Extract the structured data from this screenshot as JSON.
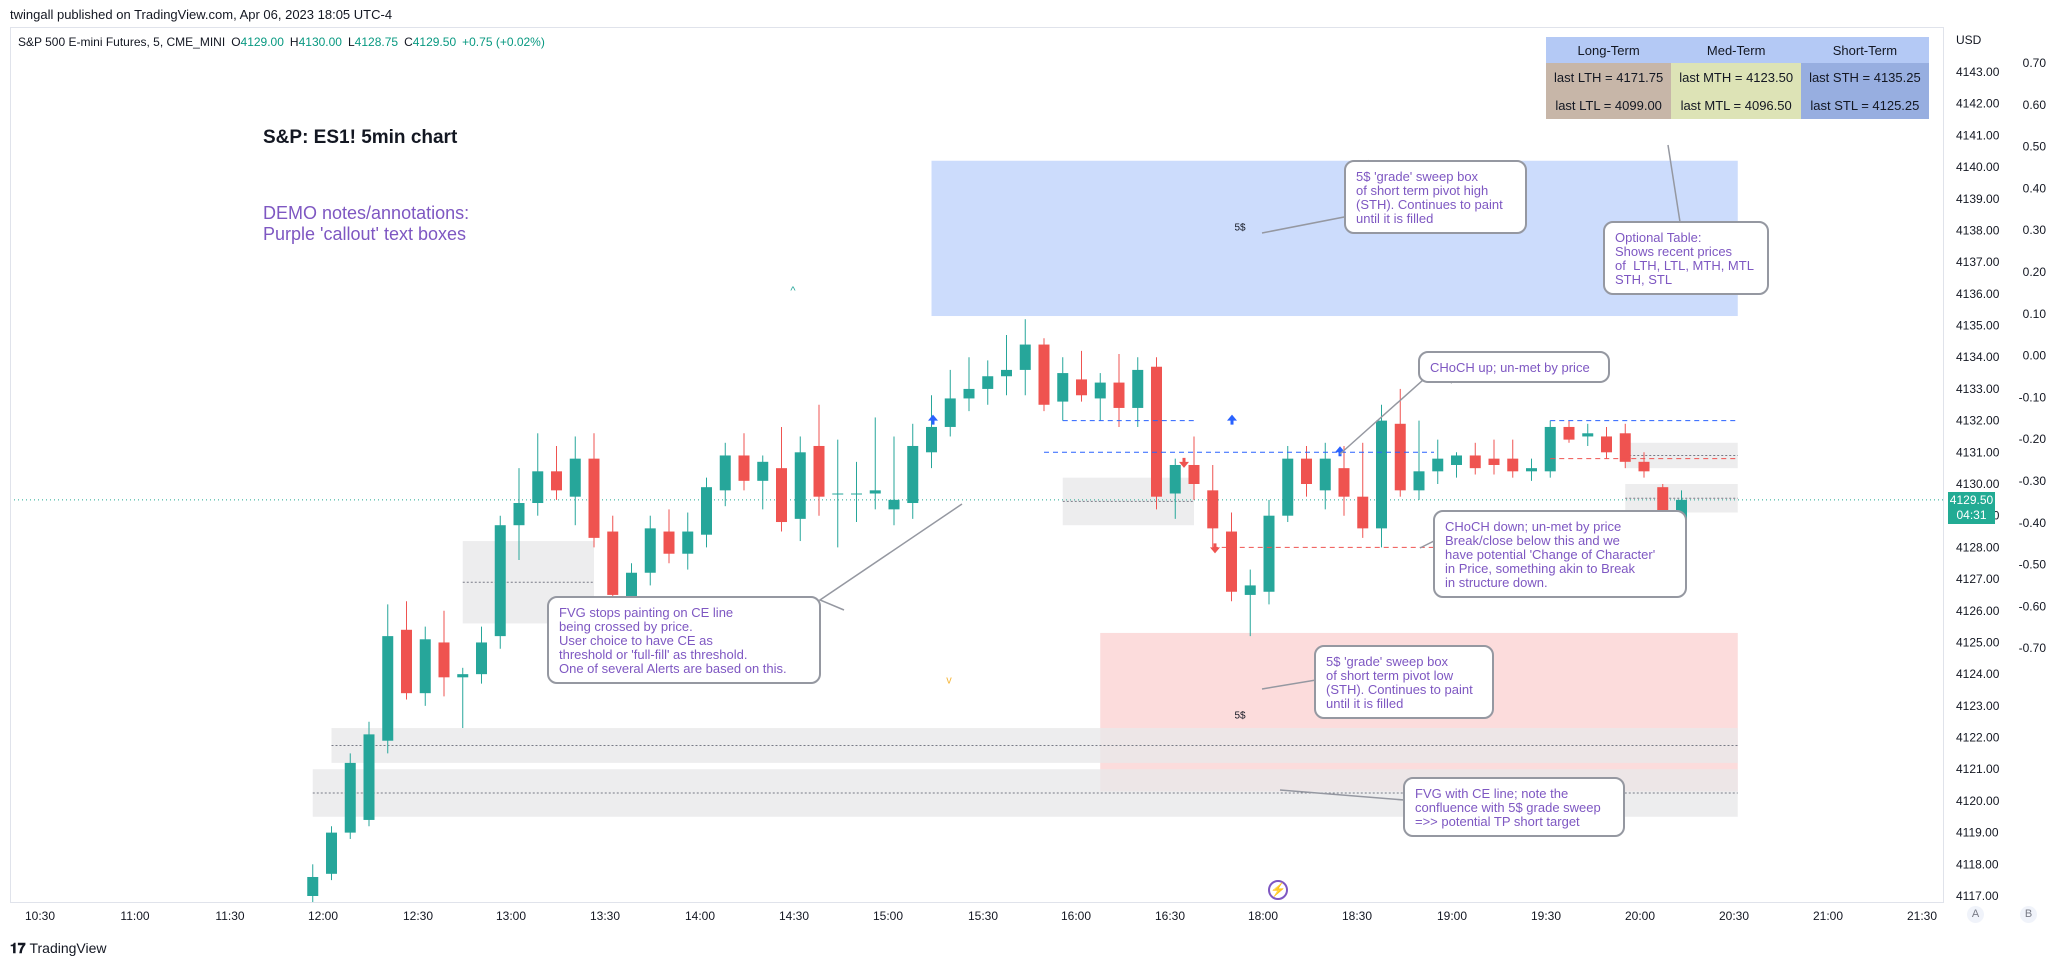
{
  "publisher": "twingall published on TradingView.com, Apr 06, 2023 18:05 UTC-4",
  "symbol": {
    "name": "S&P 500 E-mini Futures, 5, CME_MINI",
    "open_label": "O",
    "open": "4129.00",
    "high_label": "H",
    "high": "4130.00",
    "low_label": "L",
    "low": "4128.75",
    "close_label": "C",
    "close": "4129.50",
    "change": "+0.75 (+0.02%)"
  },
  "title": "S&P: ES1! 5min chart",
  "demo_note": "DEMO notes/annotations:\nPurple 'callout' text boxes",
  "currency": "USD",
  "last_price": "4129.50",
  "countdown": "04:31",
  "brand": "TradingView",
  "scale_buttons": [
    "A",
    "B"
  ],
  "table": {
    "headers": [
      "Long-Term",
      "Med-Term",
      "Short-Term"
    ],
    "rows": [
      [
        "last LTH = 4171.75",
        "last MTH = 4123.50",
        "last STH = 4135.25"
      ],
      [
        "last LTL = 4099.00",
        "last MTL = 4096.50",
        "last STL = 4125.25"
      ]
    ]
  },
  "callouts": {
    "sth_box": "5$ 'grade' sweep box\nof short term pivot high\n(STH). Continues to paint\nuntil it is filled",
    "table_note": "Optional Table:\nShows recent prices\nof  LTH, LTL, MTH, MTL\nSTH, STL",
    "choch_up": "CHoCH up; un-met by price",
    "choch_down": "CHoCH down; un-met by price\nBreak/close below this and we\nhave potential 'Change of Character'\nin Price, something akin to Break\nin structure down.",
    "fvg_ce": "FVG stops painting on CE line\nbeing crossed by price.\nUser choice to have CE as\nthreshold or 'full-fill' as threshold.\nOne of several Alerts are based on this.",
    "stl_box": "5$ 'grade' sweep box\nof short term pivot low\n(STH). Continues to paint\nuntil it is filled",
    "fvg_confluence": "FVG with CE line; note the\nconfluence with 5$ grade sweep\n=>> potential TP short target"
  },
  "box_labels": {
    "upper": "5$",
    "lower": "5$"
  },
  "colors": {
    "up": "#26a69a",
    "down": "#ef5350",
    "accent": "#7e57c2",
    "sweep_high": "#bbd0fb",
    "sweep_low": "#fbd6d6",
    "fvg": "#e8e8ea",
    "choch_up": "#2962ff",
    "choch_down": "#ef5350"
  },
  "chart_data": {
    "type": "candlestick",
    "interval": "5min",
    "y_axis": {
      "min": 4117.0,
      "max": 4143.0,
      "ticks": [
        "4117.00",
        "4118.00",
        "4119.00",
        "4120.00",
        "4121.00",
        "4122.00",
        "4123.00",
        "4124.00",
        "4125.00",
        "4126.00",
        "4127.00",
        "4128.00",
        "4129.00",
        "4130.00",
        "4131.00",
        "4132.00",
        "4133.00",
        "4134.00",
        "4135.00",
        "4136.00",
        "4137.00",
        "4138.00",
        "4139.00",
        "4140.00",
        "4141.00",
        "4142.00",
        "4143.00"
      ]
    },
    "secondary_axis_ticks": [
      "0.70",
      "0.60",
      "0.50",
      "0.40",
      "0.30",
      "0.20",
      "0.10",
      "0.00",
      "-0.10",
      "-0.20",
      "-0.30",
      "-0.40",
      "-0.50",
      "-0.60",
      "-0.70"
    ],
    "x_axis_ticks": [
      "10:30",
      "11:00",
      "11:30",
      "12:00",
      "12:30",
      "13:00",
      "13:30",
      "14:00",
      "14:30",
      "15:00",
      "15:30",
      "16:00",
      "16:30",
      "18:00",
      "18:30",
      "19:00",
      "19:30",
      "20:00",
      "20:30",
      "21:00",
      "21:30"
    ],
    "candles": [
      {
        "t": "11:45",
        "o": 4117.0,
        "h": 4118.0,
        "l": 4116.8,
        "c": 4117.6
      },
      {
        "t": "11:50",
        "o": 4117.7,
        "h": 4119.2,
        "l": 4117.5,
        "c": 4119.0
      },
      {
        "t": "11:55",
        "o": 4119.0,
        "h": 4121.5,
        "l": 4118.8,
        "c": 4121.2
      },
      {
        "t": "12:00",
        "o": 4119.4,
        "h": 4122.5,
        "l": 4119.2,
        "c": 4122.1
      },
      {
        "t": "12:05",
        "o": 4121.9,
        "h": 4126.2,
        "l": 4121.5,
        "c": 4125.2
      },
      {
        "t": "12:10",
        "o": 4125.4,
        "h": 4126.3,
        "l": 4123.2,
        "c": 4123.4
      },
      {
        "t": "12:15",
        "o": 4123.4,
        "h": 4125.5,
        "l": 4123.0,
        "c": 4125.1
      },
      {
        "t": "12:20",
        "o": 4125.0,
        "h": 4126.0,
        "l": 4123.3,
        "c": 4123.9
      },
      {
        "t": "12:25",
        "o": 4123.9,
        "h": 4124.2,
        "l": 4122.3,
        "c": 4124.0
      },
      {
        "t": "12:30",
        "o": 4124.0,
        "h": 4125.5,
        "l": 4123.7,
        "c": 4125.0
      },
      {
        "t": "12:35",
        "o": 4125.2,
        "h": 4129.0,
        "l": 4124.8,
        "c": 4128.7
      },
      {
        "t": "12:40",
        "o": 4128.7,
        "h": 4130.5,
        "l": 4127.6,
        "c": 4129.4
      },
      {
        "t": "12:45",
        "o": 4129.4,
        "h": 4131.6,
        "l": 4129.0,
        "c": 4130.4
      },
      {
        "t": "12:50",
        "o": 4130.4,
        "h": 4131.2,
        "l": 4129.5,
        "c": 4129.8
      },
      {
        "t": "12:55",
        "o": 4129.6,
        "h": 4131.5,
        "l": 4128.7,
        "c": 4130.8
      },
      {
        "t": "13:00",
        "o": 4130.8,
        "h": 4131.6,
        "l": 4128.0,
        "c": 4128.3
      },
      {
        "t": "13:05",
        "o": 4128.5,
        "h": 4129.0,
        "l": 4126.2,
        "c": 4126.5
      },
      {
        "t": "13:10",
        "o": 4126.3,
        "h": 4127.5,
        "l": 4125.2,
        "c": 4127.2
      },
      {
        "t": "13:15",
        "o": 4127.2,
        "h": 4129.0,
        "l": 4126.8,
        "c": 4128.6
      },
      {
        "t": "13:20",
        "o": 4128.5,
        "h": 4129.2,
        "l": 4127.5,
        "c": 4127.8
      },
      {
        "t": "13:25",
        "o": 4127.8,
        "h": 4129.1,
        "l": 4127.3,
        "c": 4128.5
      },
      {
        "t": "13:30",
        "o": 4128.4,
        "h": 4130.2,
        "l": 4128.0,
        "c": 4129.9
      },
      {
        "t": "13:35",
        "o": 4129.8,
        "h": 4131.3,
        "l": 4129.3,
        "c": 4130.9
      },
      {
        "t": "13:40",
        "o": 4130.9,
        "h": 4131.6,
        "l": 4129.8,
        "c": 4130.1
      },
      {
        "t": "13:45",
        "o": 4130.1,
        "h": 4130.9,
        "l": 4129.2,
        "c": 4130.7
      },
      {
        "t": "13:50",
        "o": 4130.5,
        "h": 4131.8,
        "l": 4128.5,
        "c": 4128.8
      },
      {
        "t": "13:55",
        "o": 4128.9,
        "h": 4131.5,
        "l": 4128.2,
        "c": 4131.0
      },
      {
        "t": "14:00",
        "o": 4131.2,
        "h": 4132.5,
        "l": 4129.0,
        "c": 4129.6
      },
      {
        "t": "14:05",
        "o": 4129.7,
        "h": 4131.4,
        "l": 4128.0,
        "c": 4129.7
      },
      {
        "t": "14:10",
        "o": 4129.7,
        "h": 4130.7,
        "l": 4128.8,
        "c": 4129.7
      },
      {
        "t": "14:15",
        "o": 4129.7,
        "h": 4132.1,
        "l": 4129.2,
        "c": 4129.8
      },
      {
        "t": "14:20",
        "o": 4129.2,
        "h": 4131.5,
        "l": 4128.7,
        "c": 4129.5
      },
      {
        "t": "14:25",
        "o": 4129.4,
        "h": 4131.9,
        "l": 4128.9,
        "c": 4131.2
      },
      {
        "t": "14:30",
        "o": 4131.0,
        "h": 4132.8,
        "l": 4130.5,
        "c": 4131.8
      },
      {
        "t": "14:35",
        "o": 4131.8,
        "h": 4133.6,
        "l": 4131.5,
        "c": 4132.7
      },
      {
        "t": "14:40",
        "o": 4132.7,
        "h": 4134.0,
        "l": 4132.3,
        "c": 4133.0
      },
      {
        "t": "14:45",
        "o": 4133.0,
        "h": 4133.9,
        "l": 4132.5,
        "c": 4133.4
      },
      {
        "t": "14:50",
        "o": 4133.4,
        "h": 4134.7,
        "l": 4132.8,
        "c": 4133.6
      },
      {
        "t": "14:55",
        "o": 4133.6,
        "h": 4135.2,
        "l": 4132.8,
        "c": 4134.4
      },
      {
        "t": "15:00",
        "o": 4134.4,
        "h": 4134.6,
        "l": 4132.3,
        "c": 4132.5
      },
      {
        "t": "15:05",
        "o": 4132.6,
        "h": 4134.0,
        "l": 4132.0,
        "c": 4133.5
      },
      {
        "t": "15:10",
        "o": 4133.3,
        "h": 4134.2,
        "l": 4132.6,
        "c": 4132.8
      },
      {
        "t": "15:15",
        "o": 4132.7,
        "h": 4133.5,
        "l": 4132.0,
        "c": 4133.2
      },
      {
        "t": "15:20",
        "o": 4133.2,
        "h": 4134.1,
        "l": 4131.8,
        "c": 4132.4
      },
      {
        "t": "15:25",
        "o": 4132.4,
        "h": 4134.0,
        "l": 4131.8,
        "c": 4133.6
      },
      {
        "t": "15:30",
        "o": 4133.7,
        "h": 4134.0,
        "l": 4129.2,
        "c": 4129.6
      },
      {
        "t": "15:35",
        "o": 4129.7,
        "h": 4130.8,
        "l": 4128.9,
        "c": 4130.6
      },
      {
        "t": "15:40",
        "o": 4130.6,
        "h": 4131.5,
        "l": 4129.5,
        "c": 4130.0
      },
      {
        "t": "15:45",
        "o": 4129.8,
        "h": 4130.6,
        "l": 4128.0,
        "c": 4128.6
      },
      {
        "t": "15:50",
        "o": 4128.5,
        "h": 4129.1,
        "l": 4126.3,
        "c": 4126.6
      },
      {
        "t": "15:55",
        "o": 4126.5,
        "h": 4127.3,
        "l": 4125.2,
        "c": 4126.8
      },
      {
        "t": "16:00",
        "o": 4126.6,
        "h": 4129.5,
        "l": 4126.2,
        "c": 4129.0
      },
      {
        "t": "16:05",
        "o": 4129.0,
        "h": 4131.2,
        "l": 4128.8,
        "c": 4130.8
      },
      {
        "t": "16:10",
        "o": 4130.8,
        "h": 4131.2,
        "l": 4129.6,
        "c": 4130.0
      },
      {
        "t": "16:15",
        "o": 4129.8,
        "h": 4131.3,
        "l": 4129.2,
        "c": 4130.8
      },
      {
        "t": "16:20",
        "o": 4130.5,
        "h": 4131.2,
        "l": 4129.0,
        "c": 4129.6
      },
      {
        "t": "16:25",
        "o": 4129.6,
        "h": 4131.3,
        "l": 4128.3,
        "c": 4128.6
      },
      {
        "t": "16:30",
        "o": 4128.6,
        "h": 4132.5,
        "l": 4128.0,
        "c": 4132.0
      },
      {
        "t": "16:35",
        "o": 4131.9,
        "h": 4133.0,
        "l": 4129.6,
        "c": 4129.8
      },
      {
        "t": "16:40",
        "o": 4129.8,
        "h": 4132.0,
        "l": 4129.5,
        "c": 4130.4
      },
      {
        "t": "16:45",
        "o": 4130.4,
        "h": 4131.4,
        "l": 4130.0,
        "c": 4130.8
      },
      {
        "t": "16:50",
        "o": 4130.6,
        "h": 4131.0,
        "l": 4130.2,
        "c": 4130.9
      },
      {
        "t": "16:55",
        "o": 4130.9,
        "h": 4131.3,
        "l": 4130.3,
        "c": 4130.5
      },
      {
        "t": "17:00",
        "o": 4130.8,
        "h": 4131.4,
        "l": 4130.3,
        "c": 4130.6
      },
      {
        "t": "17:05",
        "o": 4130.8,
        "h": 4131.4,
        "l": 4130.2,
        "c": 4130.4
      },
      {
        "t": "17:10",
        "o": 4130.4,
        "h": 4130.8,
        "l": 4130.1,
        "c": 4130.5
      },
      {
        "t": "17:15",
        "o": 4130.4,
        "h": 4132.0,
        "l": 4130.2,
        "c": 4131.8
      },
      {
        "t": "17:20",
        "o": 4131.8,
        "h": 4132.0,
        "l": 4131.3,
        "c": 4131.4
      },
      {
        "t": "17:25",
        "o": 4131.5,
        "h": 4131.9,
        "l": 4131.2,
        "c": 4131.6
      },
      {
        "t": "17:30",
        "o": 4131.5,
        "h": 4131.8,
        "l": 4130.8,
        "c": 4131.0
      },
      {
        "t": "17:35",
        "o": 4131.6,
        "h": 4131.9,
        "l": 4130.5,
        "c": 4130.7
      },
      {
        "t": "17:40",
        "o": 4130.7,
        "h": 4131.0,
        "l": 4130.2,
        "c": 4130.4
      },
      {
        "t": "17:45",
        "o": 4129.9,
        "h": 4130.0,
        "l": 4128.2,
        "c": 4128.9
      },
      {
        "t": "17:50",
        "o": 4128.8,
        "h": 4129.8,
        "l": 4128.6,
        "c": 4129.5
      }
    ],
    "zones": {
      "sweep_high_box": {
        "from": "14:30",
        "to": "18:05",
        "top": 4140.2,
        "bottom": 4135.3
      },
      "sweep_low_box": {
        "from": "15:15",
        "to": "18:05",
        "top": 4125.3,
        "bottom": 4120.3
      },
      "fvg_zones": [
        {
          "from": "12:25",
          "to": "13:00",
          "top": 4128.2,
          "bottom": 4125.6
        },
        {
          "from": "11:50",
          "to": "18:05",
          "top": 4122.3,
          "bottom": 4121.2
        },
        {
          "from": "11:45",
          "to": "18:05",
          "top": 4121.0,
          "bottom": 4119.5
        },
        {
          "from": "15:05",
          "to": "15:40",
          "top": 4130.2,
          "bottom": 4128.7
        },
        {
          "from": "17:35",
          "to": "18:05",
          "top": 4131.3,
          "bottom": 4130.5
        },
        {
          "from": "17:35",
          "to": "18:05",
          "top": 4130.0,
          "bottom": 4129.1
        }
      ],
      "choch_up_level": 4131.0,
      "choch_down_level": 4128.0,
      "current_price": 4129.5
    }
  }
}
